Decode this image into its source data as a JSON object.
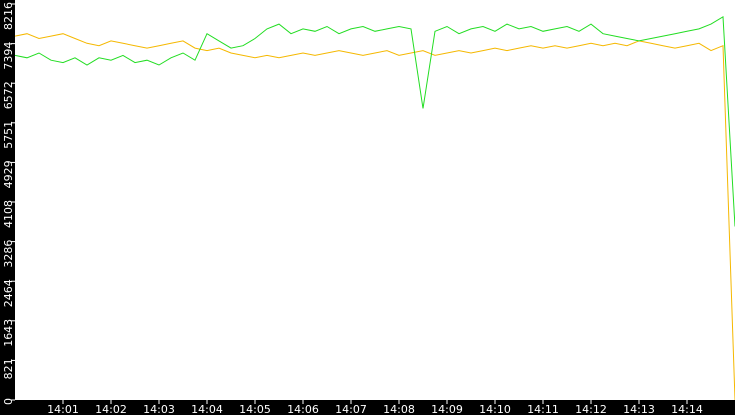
{
  "chart_data": {
    "type": "line",
    "categories": [
      null,
      null,
      null,
      null,
      "14:01",
      null,
      null,
      null,
      "14:02",
      null,
      null,
      null,
      "14:03",
      null,
      null,
      null,
      "14:04",
      null,
      null,
      null,
      "14:05",
      null,
      null,
      null,
      "14:06",
      null,
      null,
      null,
      "14:07",
      null,
      null,
      null,
      "14:08",
      null,
      null,
      null,
      "14:09",
      null,
      null,
      null,
      "14:10",
      null,
      null,
      null,
      "14:11",
      null,
      null,
      null,
      "14:12",
      null,
      null,
      null,
      "14:13",
      null,
      null,
      null,
      "14:14",
      null,
      null,
      null,
      null
    ],
    "series": [
      {
        "color": "#22dd22",
        "values": [
          7150,
          7100,
          7200,
          7050,
          7000,
          7100,
          6950,
          7100,
          7050,
          7150,
          7000,
          7050,
          6950,
          7100,
          7200,
          7050,
          7600,
          7450,
          7300,
          7350,
          7500,
          7700,
          7800,
          7600,
          7700,
          7650,
          7750,
          7600,
          7700,
          7750,
          7650,
          7700,
          7750,
          7700,
          6050,
          7650,
          7750,
          7600,
          7700,
          7750,
          7650,
          7800,
          7700,
          7750,
          7650,
          7700,
          7750,
          7650,
          7800,
          7600,
          7550,
          7500,
          7450,
          7500,
          7550,
          7600,
          7650,
          7700,
          7800,
          7950,
          3600
        ]
      },
      {
        "color": "#f5b800",
        "values": [
          7550,
          7600,
          7500,
          7550,
          7600,
          7500,
          7400,
          7350,
          7450,
          7400,
          7350,
          7300,
          7350,
          7400,
          7450,
          7300,
          7250,
          7300,
          7200,
          7150,
          7100,
          7150,
          7100,
          7150,
          7200,
          7150,
          7200,
          7250,
          7200,
          7150,
          7200,
          7250,
          7150,
          7200,
          7250,
          7150,
          7200,
          7250,
          7200,
          7250,
          7300,
          7250,
          7300,
          7350,
          7300,
          7350,
          7300,
          7350,
          7400,
          7350,
          7400,
          7350,
          7450,
          7400,
          7350,
          7300,
          7350,
          7400,
          7250,
          7350,
          0
        ]
      }
    ],
    "ylim": [
      0,
      8216
    ],
    "yticks": [
      0,
      821,
      1643,
      2464,
      3286,
      4108,
      4929,
      5751,
      6572,
      7394,
      8216
    ]
  }
}
